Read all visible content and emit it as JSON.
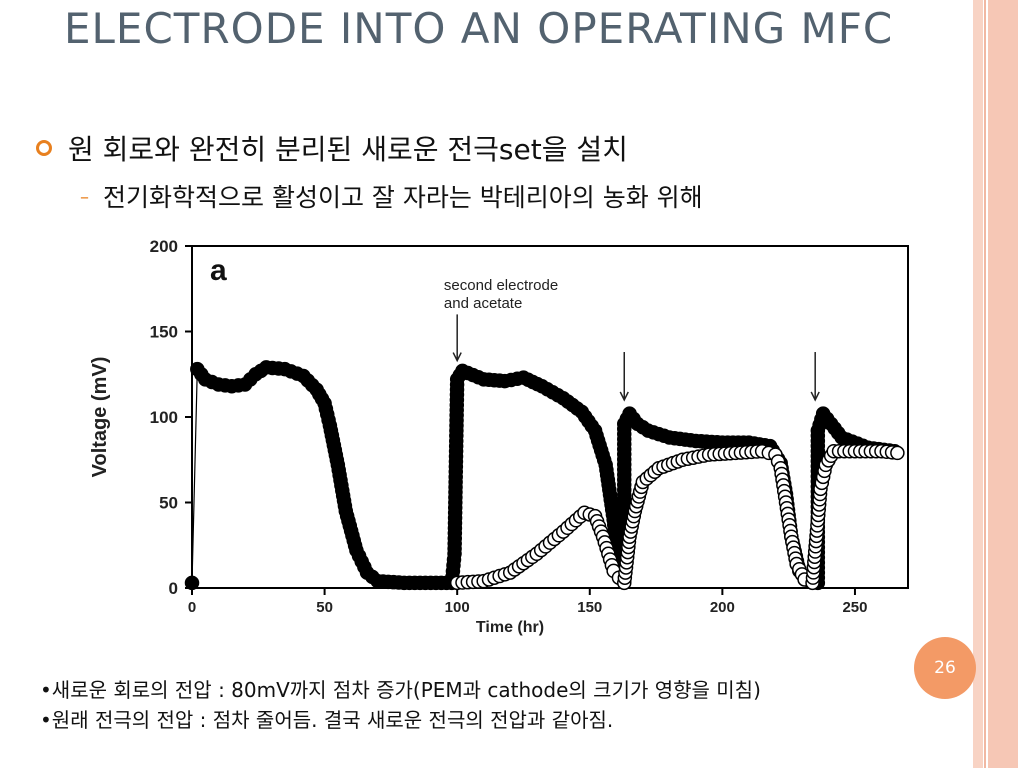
{
  "slide": {
    "title": "ELECTRODE INTO AN OPERATING MFC",
    "bullet": "원 회로와 완전히 분리된 새로운 전극set을 설치",
    "sub_bullet": "전기화학적으로 활성이고 잘 자라는 박테리아의 농화 위해",
    "page_number": "26",
    "notes": [
      "•새로운 회로의 전압 : 80mV까지 점차 증가(PEM과 cathode의 크기가 영향을 미침)",
      "•원래 전극의 전압 : 점차 줄어듬. 결국 새로운 전극의 전압과 같아짐."
    ],
    "accent_color": "#e8801f",
    "title_color": "#53626f",
    "page_badge_color": "#f39a66"
  },
  "chart_data": {
    "type": "scatter",
    "panel_label": "a",
    "annotation": "second electrode\nand acetate",
    "xlabel": "Time (hr)",
    "ylabel": "Voltage (mV)",
    "xlim": [
      0,
      270
    ],
    "ylim": [
      0,
      200
    ],
    "x_ticks": [
      0,
      50,
      100,
      150,
      200,
      250
    ],
    "y_ticks": [
      0,
      50,
      100,
      150,
      200
    ],
    "arrows_at_x": [
      100,
      163,
      235
    ],
    "series": [
      {
        "marker": "filled",
        "points": [
          [
            0,
            3
          ],
          [
            2,
            128
          ],
          [
            5,
            122
          ],
          [
            10,
            119
          ],
          [
            15,
            118
          ],
          [
            20,
            119
          ],
          [
            24,
            125
          ],
          [
            28,
            129
          ],
          [
            35,
            128
          ],
          [
            42,
            124
          ],
          [
            47,
            116
          ],
          [
            50,
            108
          ],
          [
            52,
            95
          ],
          [
            55,
            72
          ],
          [
            58,
            45
          ],
          [
            62,
            22
          ],
          [
            66,
            9
          ],
          [
            70,
            4
          ],
          [
            80,
            3
          ],
          [
            90,
            3
          ],
          [
            98,
            3
          ],
          [
            99,
            20
          ],
          [
            100,
            122
          ],
          [
            102,
            127
          ],
          [
            110,
            122
          ],
          [
            118,
            121
          ],
          [
            125,
            123
          ],
          [
            132,
            118
          ],
          [
            140,
            111
          ],
          [
            147,
            103
          ],
          [
            152,
            92
          ],
          [
            156,
            72
          ],
          [
            159,
            40
          ],
          [
            161,
            12
          ],
          [
            163,
            4
          ],
          [
            163,
            96
          ],
          [
            165,
            102
          ],
          [
            168,
            96
          ],
          [
            172,
            92
          ],
          [
            180,
            88
          ],
          [
            190,
            86
          ],
          [
            200,
            85
          ],
          [
            210,
            85
          ],
          [
            218,
            83
          ],
          [
            222,
            73
          ],
          [
            224,
            55
          ],
          [
            226,
            30
          ],
          [
            229,
            10
          ],
          [
            233,
            4
          ],
          [
            236,
            3
          ],
          [
            236,
            92
          ],
          [
            238,
            102
          ],
          [
            241,
            96
          ],
          [
            245,
            88
          ],
          [
            255,
            82
          ],
          [
            265,
            80
          ]
        ]
      },
      {
        "marker": "open",
        "points": [
          [
            100,
            3
          ],
          [
            110,
            4
          ],
          [
            120,
            9
          ],
          [
            130,
            20
          ],
          [
            140,
            33
          ],
          [
            148,
            44
          ],
          [
            152,
            42
          ],
          [
            155,
            30
          ],
          [
            157,
            20
          ],
          [
            159,
            10
          ],
          [
            161,
            6
          ],
          [
            163,
            3
          ],
          [
            165,
            30
          ],
          [
            167,
            45
          ],
          [
            170,
            62
          ],
          [
            176,
            70
          ],
          [
            185,
            75
          ],
          [
            195,
            78
          ],
          [
            205,
            79
          ],
          [
            215,
            80
          ],
          [
            220,
            78
          ],
          [
            222,
            70
          ],
          [
            224,
            50
          ],
          [
            226,
            30
          ],
          [
            228,
            14
          ],
          [
            231,
            5
          ],
          [
            234,
            3
          ],
          [
            237,
            58
          ],
          [
            239,
            72
          ],
          [
            242,
            80
          ],
          [
            250,
            80
          ],
          [
            260,
            80
          ],
          [
            266,
            79
          ]
        ]
      }
    ]
  }
}
